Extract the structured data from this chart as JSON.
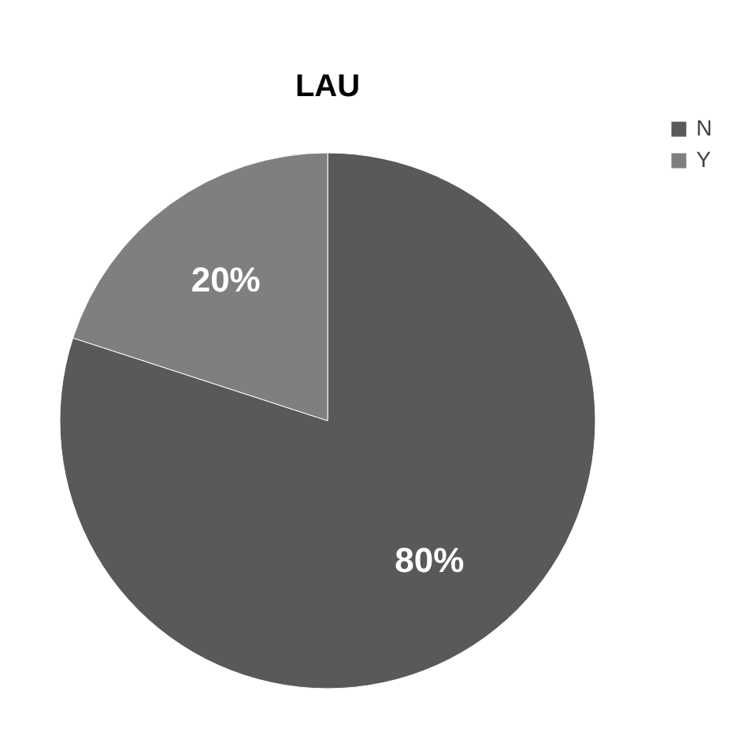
{
  "chart_data": {
    "type": "pie",
    "title": "LAU",
    "categories": [
      "N",
      "Y"
    ],
    "values": [
      80,
      20
    ],
    "colors": [
      "#595959",
      "#7f7f7f"
    ],
    "value_labels": [
      "80%",
      "20%"
    ],
    "legend": "right"
  }
}
